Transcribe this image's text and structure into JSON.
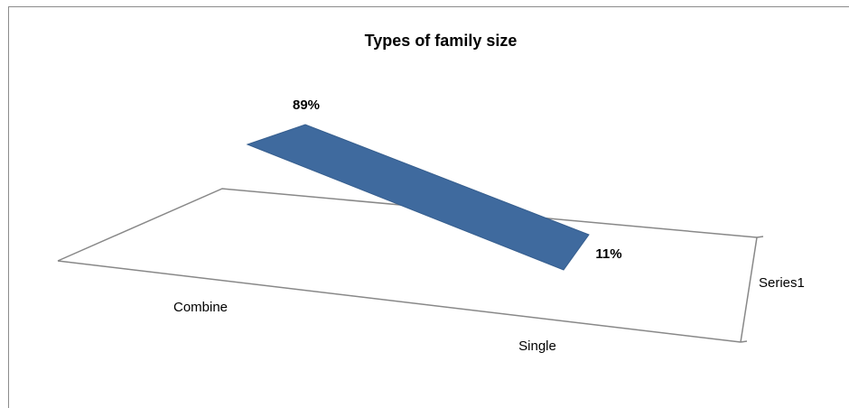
{
  "chart_data": {
    "type": "area",
    "title": "Types of family size",
    "categories": [
      "Combine",
      "Single"
    ],
    "series": [
      {
        "name": "Series1",
        "values": [
          89,
          11
        ],
        "labels": [
          "89%",
          "11%"
        ]
      }
    ],
    "unit": "%",
    "grid": false,
    "legend": "none",
    "color": "#3f6a9e"
  }
}
